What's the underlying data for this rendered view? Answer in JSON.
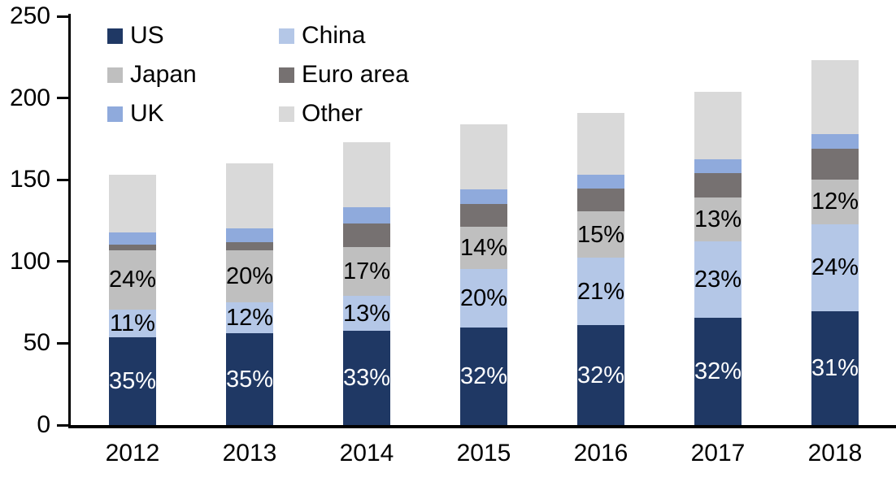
{
  "chart_data": {
    "type": "bar",
    "stacked": true,
    "title": "",
    "categories": [
      "2012",
      "2013",
      "2014",
      "2015",
      "2016",
      "2017",
      "2018"
    ],
    "series": [
      {
        "name": "US",
        "color": "#1f3864",
        "values": [
          53.5,
          56,
          57.5,
          59.5,
          61,
          65.5,
          69.5
        ],
        "pct_labels": [
          "35%",
          "35%",
          "33%",
          "32%",
          "32%",
          "32%",
          "31%"
        ],
        "pct_label_color": "#ffffff"
      },
      {
        "name": "China",
        "color": "#b4c7e7",
        "values": [
          17,
          19,
          21.5,
          36,
          41.5,
          47,
          53.5
        ],
        "pct_labels": [
          "11%",
          "12%",
          "13%",
          "20%",
          "21%",
          "23%",
          "24%"
        ],
        "pct_label_color": "#000000"
      },
      {
        "name": "Japan",
        "color": "#bfbfbf",
        "values": [
          36.5,
          32,
          30,
          26,
          28,
          26.5,
          27
        ],
        "pct_labels": [
          "24%",
          "20%",
          "17%",
          "14%",
          "15%",
          "13%",
          "12%"
        ],
        "pct_label_color": "#000000"
      },
      {
        "name": "Euro area",
        "color": "#767171",
        "values": [
          3.5,
          5,
          14.5,
          13.5,
          14,
          15,
          19
        ],
        "pct_labels": null,
        "pct_label_color": null
      },
      {
        "name": "UK",
        "color": "#8faadc",
        "values": [
          7.5,
          8.5,
          9.5,
          9,
          8.5,
          8.5,
          9
        ],
        "pct_labels": null,
        "pct_label_color": null
      },
      {
        "name": "Other",
        "color": "#d9d9d9",
        "values": [
          35,
          39.5,
          40,
          40,
          38,
          41.5,
          45
        ],
        "pct_labels": null,
        "pct_label_color": null
      }
    ],
    "totals": [
      153,
      160,
      173,
      184,
      191,
      204,
      223
    ],
    "xlabel": "",
    "ylabel": "",
    "ylim": [
      0,
      250
    ],
    "ytick_step": 50,
    "ytick_labels": [
      "0",
      "50",
      "100",
      "150",
      "200",
      "250"
    ],
    "grid": false,
    "axis_color": "#000000",
    "legend_position": "top-left",
    "legend_columns": [
      [
        "US",
        "Japan",
        "UK"
      ],
      [
        "China",
        "Euro area",
        "Other"
      ]
    ]
  }
}
